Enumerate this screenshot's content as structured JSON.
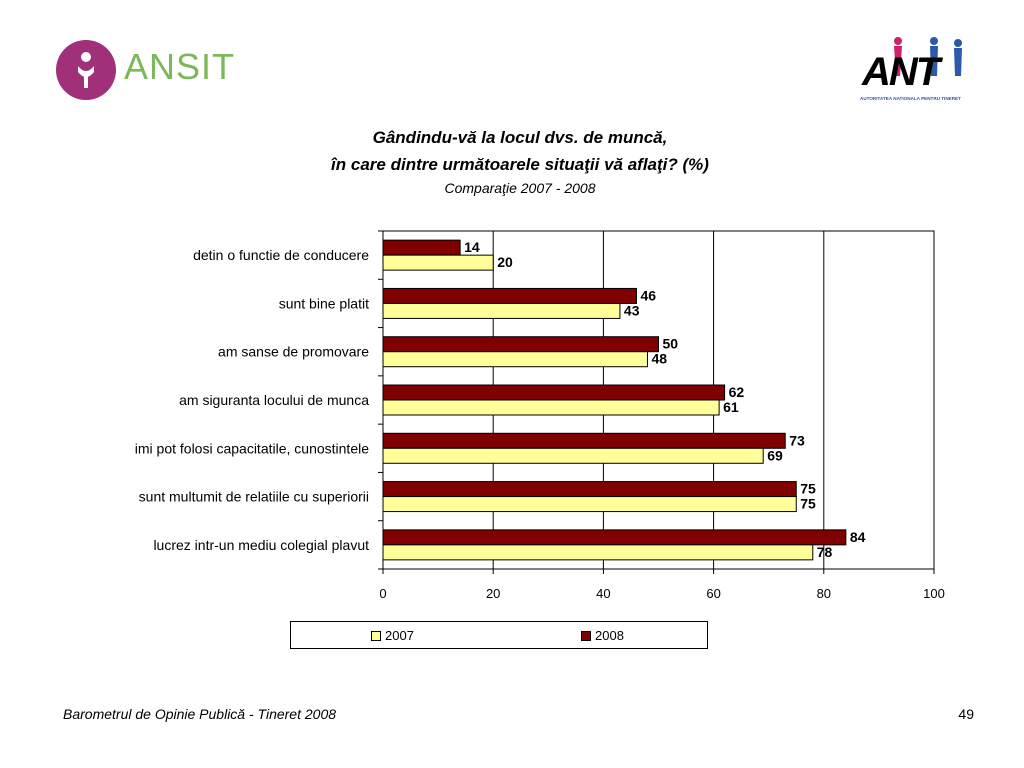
{
  "header": {
    "left_logo_text": "ANSIT",
    "right_logo_text": "ANT",
    "right_logo_tagline": "AUTORITATEA NATIONALA PENTRU TINERET"
  },
  "colors": {
    "bar_2008": "#800000",
    "bar_2007": "#ffff99",
    "left_logo_circle": "#a0307a",
    "left_logo_text": "#7ab85a"
  },
  "chart_data": {
    "type": "bar",
    "orientation": "horizontal",
    "title": "Gândindu-vă la locul dvs. de muncă,",
    "title_line2": "în care dintre următoarele situaţii vă aflaţi? (%)",
    "subtitle": "Comparaţie 2007 - 2008",
    "categories": [
      "detin o functie de conducere",
      "sunt bine platit",
      "am sanse de promovare",
      "am siguranta locului de munca",
      "imi pot folosi capacitatile, cunostintele",
      "sunt multumit de relatiile cu superiorii",
      "lucrez intr-un mediu colegial plavut"
    ],
    "series": [
      {
        "name": "2008",
        "color": "#800000",
        "values": [
          14,
          46,
          50,
          62,
          73,
          75,
          84
        ]
      },
      {
        "name": "2007",
        "color": "#ffff99",
        "values": [
          20,
          43,
          48,
          61,
          69,
          75,
          78
        ]
      }
    ],
    "xlim": [
      0,
      100
    ],
    "xticks": [
      0,
      20,
      40,
      60,
      80,
      100
    ],
    "grid": "vertical",
    "legend": "bottom",
    "legend_order": [
      "2007",
      "2008"
    ]
  },
  "footer": {
    "source": "Barometrul de Opinie Publică - Tineret 2008",
    "page_number": "49"
  }
}
